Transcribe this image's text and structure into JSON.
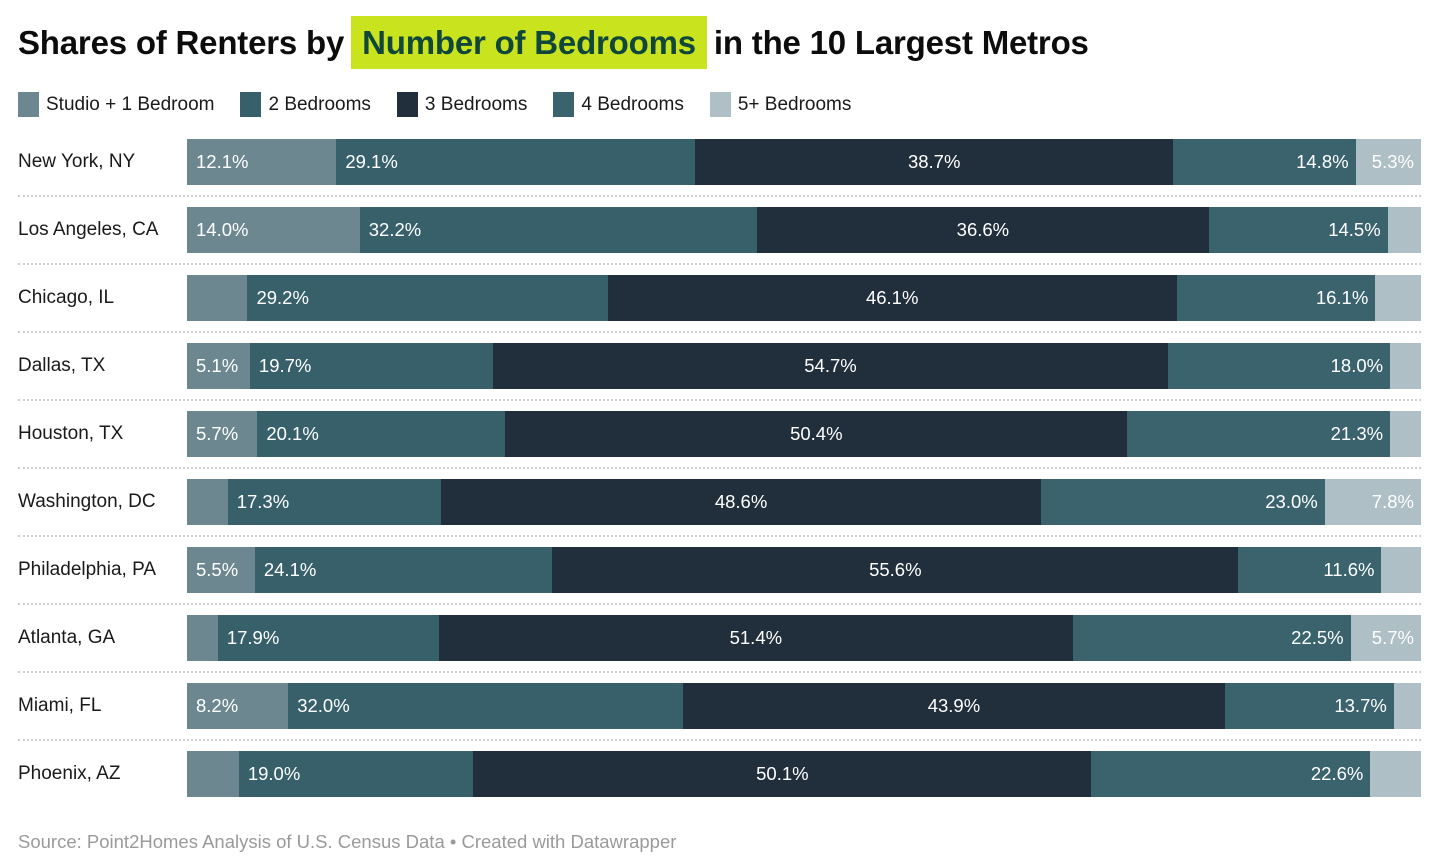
{
  "title": {
    "prefix": "Shares of Renters by",
    "highlight": "Number of Bedrooms",
    "suffix": "in the 10 Largest Metros"
  },
  "colors": {
    "series": [
      "#6d8791",
      "#37606b",
      "#212e3b",
      "#3a636e",
      "#aebfc5"
    ],
    "title_highlight_bg": "#c9e31f",
    "title_highlight_text": "#10473a",
    "bar_label": "#ffffff",
    "separator": "#cfcfcf",
    "footer_text": "#9a9a9a"
  },
  "chart_data": {
    "type": "bar",
    "stacked": true,
    "orientation": "horizontal",
    "value_unit": "percent",
    "x_range": [
      0,
      100
    ],
    "grid": false,
    "legend_position": "top",
    "series_names": [
      "Studio + 1 Bedroom",
      "2 Bedrooms",
      "3 Bedrooms",
      "4 Bedrooms",
      "5+ Bedrooms"
    ],
    "categories": [
      "New York, NY",
      "Los Angeles, CA",
      "Chicago, IL",
      "Dallas, TX",
      "Houston, TX",
      "Washington, DC",
      "Philadelphia, PA",
      "Atlanta, GA",
      "Miami, FL",
      "Phoenix, AZ"
    ],
    "rows": [
      {
        "metro": "New York, NY",
        "values": [
          12.1,
          29.1,
          38.7,
          14.8,
          5.3
        ],
        "labels": [
          "12.1%",
          "29.1%",
          "38.7%",
          "14.8%",
          "5.3%"
        ]
      },
      {
        "metro": "Los Angeles, CA",
        "values": [
          14.0,
          32.2,
          36.6,
          14.5,
          2.7
        ],
        "labels": [
          "14.0%",
          "32.2%",
          "36.6%",
          "14.5%",
          null
        ]
      },
      {
        "metro": "Chicago, IL",
        "values": [
          4.9,
          29.2,
          46.1,
          16.1,
          3.7
        ],
        "labels": [
          null,
          "29.2%",
          "46.1%",
          "16.1%",
          null
        ]
      },
      {
        "metro": "Dallas, TX",
        "values": [
          5.1,
          19.7,
          54.7,
          18.0,
          2.5
        ],
        "labels": [
          "5.1%",
          "19.7%",
          "54.7%",
          "18.0%",
          null
        ]
      },
      {
        "metro": "Houston, TX",
        "values": [
          5.7,
          20.1,
          50.4,
          21.3,
          2.5
        ],
        "labels": [
          "5.7%",
          "20.1%",
          "50.4%",
          "21.3%",
          null
        ]
      },
      {
        "metro": "Washington, DC",
        "values": [
          3.3,
          17.3,
          48.6,
          23.0,
          7.8
        ],
        "labels": [
          null,
          "17.3%",
          "48.6%",
          "23.0%",
          "7.8%"
        ]
      },
      {
        "metro": "Philadelphia, PA",
        "values": [
          5.5,
          24.1,
          55.6,
          11.6,
          3.2
        ],
        "labels": [
          "5.5%",
          "24.1%",
          "55.6%",
          "11.6%",
          null
        ]
      },
      {
        "metro": "Atlanta, GA",
        "values": [
          2.5,
          17.9,
          51.4,
          22.5,
          5.7
        ],
        "labels": [
          null,
          "17.9%",
          "51.4%",
          "22.5%",
          "5.7%"
        ]
      },
      {
        "metro": "Miami, FL",
        "values": [
          8.2,
          32.0,
          43.9,
          13.7,
          2.2
        ],
        "labels": [
          "8.2%",
          "32.0%",
          "43.9%",
          "13.7%",
          null
        ]
      },
      {
        "metro": "Phoenix, AZ",
        "values": [
          4.2,
          19.0,
          50.1,
          22.6,
          4.1
        ],
        "labels": [
          null,
          "19.0%",
          "50.1%",
          "22.6%",
          null
        ]
      }
    ]
  },
  "footer": {
    "text": "Source: Point2Homes Analysis of U.S. Census Data • Created with Datawrapper"
  }
}
